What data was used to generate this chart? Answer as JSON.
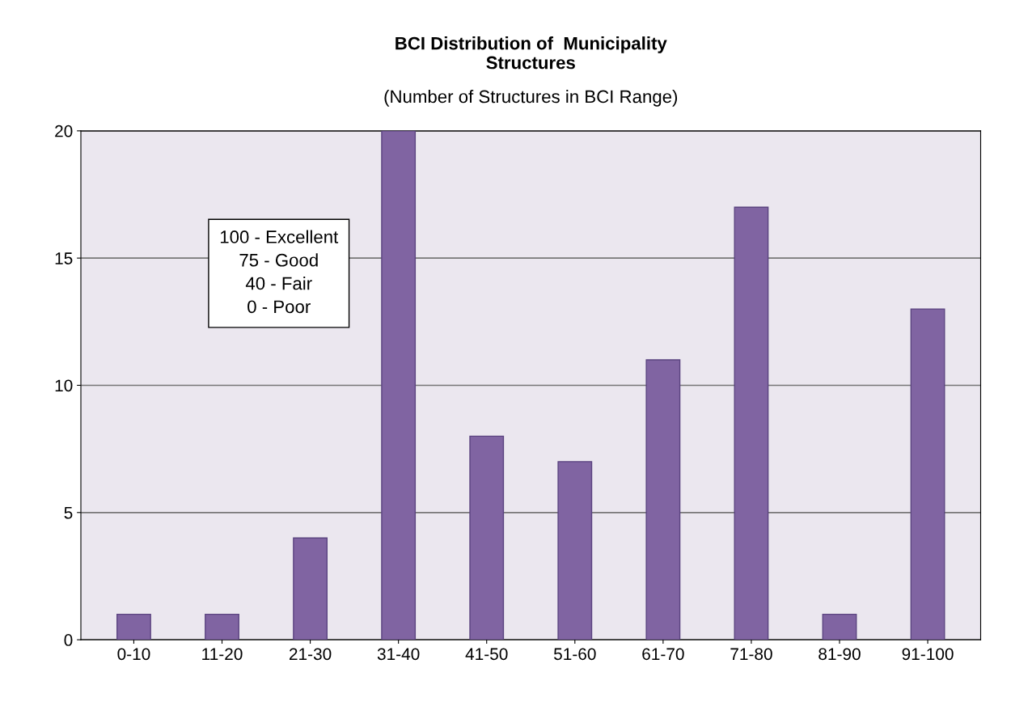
{
  "chart_data": {
    "type": "bar",
    "title": "BCI Distribution of  Municipality\nStructures",
    "subtitle": "(Number of Structures in BCI Range)",
    "categories": [
      "0-10",
      "11-20",
      "21-30",
      "31-40",
      "41-50",
      "51-60",
      "61-70",
      "71-80",
      "81-90",
      "91-100"
    ],
    "values": [
      1,
      1,
      4,
      20,
      8,
      7,
      11,
      17,
      1,
      13
    ],
    "color": "#8064a2",
    "ylim": [
      0,
      20
    ],
    "yticks": [
      0,
      5,
      10,
      15,
      20
    ],
    "grid": "y",
    "annotations": [
      "100 - Excellent\n75 - Good\n40 - Fair\n0 - Poor"
    ]
  }
}
